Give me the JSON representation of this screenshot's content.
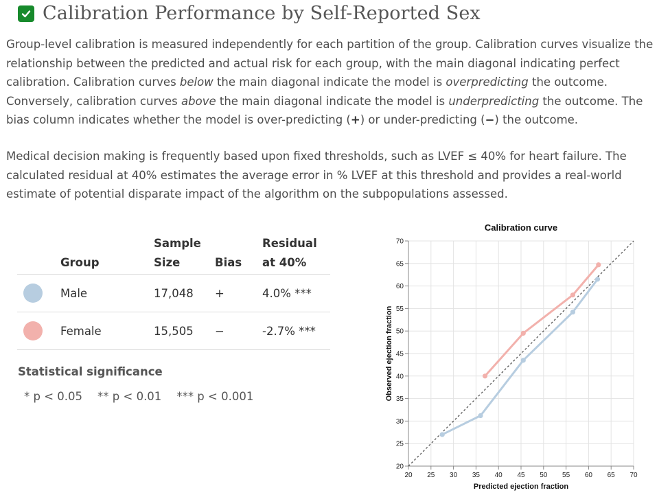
{
  "header": {
    "title": "Calibration Performance by Self-Reported Sex",
    "check_color": "#178a2c",
    "check_icon": "checkmark-icon"
  },
  "para1": {
    "t1": "Group-level calibration is measured independently for each partition of the group. Calibration curves visualize the relationship between the predicted and actual risk for each group, with the main diagonal indicating perfect calibration. Calibration curves ",
    "em1": "below",
    "t2": " the main diagonal indicate the model is ",
    "em2": "overpredicting",
    "t3": " the outcome. Conversely, calibration curves ",
    "em3": "above",
    "t4": " the main diagonal indicate the model is ",
    "em4": "underpredicting",
    "t5": " the outcome. The bias column indicates whether the model is over-predicting (",
    "plus": "+",
    "t6": ") or under-predicting (",
    "minus": "−",
    "t7": ") the outcome."
  },
  "para2": "Medical decision making is frequently based upon fixed thresholds, such as LVEF ≤ 40% for heart failure. The calculated residual at 40% estimates the average error in % LVEF at this threshold and provides a real-world estimate of potential disparate impact of the algorithm on the subpopulations assessed.",
  "table": {
    "headers": {
      "group": "Group",
      "sample_1": "Sample",
      "sample_2": "Size",
      "bias": "Bias",
      "residual_1": "Residual",
      "residual_2": "at 40%"
    },
    "rows": [
      {
        "group": "Male",
        "size": "17,048",
        "bias": "+",
        "residual": "4.0% ***",
        "color": "#b7cde0"
      },
      {
        "group": "Female",
        "size": "15,505",
        "bias": "−",
        "residual": "-2.7% ***",
        "color": "#f2b1ac"
      }
    ]
  },
  "significance": {
    "title": "Statistical significance",
    "items": [
      "* p < 0.05",
      "** p < 0.01",
      "*** p < 0.001"
    ]
  },
  "chart_data": {
    "type": "line",
    "title": "Calibration curve",
    "xlabel": "Predicted ejection fraction",
    "ylabel": "Observed ejection fraction",
    "xlim": [
      20,
      70
    ],
    "ylim": [
      20,
      70
    ],
    "xticks": [
      20,
      25,
      30,
      35,
      40,
      45,
      50,
      55,
      60,
      65,
      70
    ],
    "yticks": [
      20,
      25,
      30,
      35,
      40,
      45,
      50,
      55,
      60,
      65,
      70
    ],
    "grid": true,
    "diagonal": true,
    "series": [
      {
        "name": "Male",
        "color": "#b7cde0",
        "points": [
          [
            27.5,
            27.0
          ],
          [
            36.0,
            31.2
          ],
          [
            45.5,
            43.5
          ],
          [
            56.5,
            54.2
          ],
          [
            62.0,
            61.5
          ]
        ]
      },
      {
        "name": "Female",
        "color": "#f2b1ac",
        "points": [
          [
            37.0,
            40.0
          ],
          [
            45.5,
            49.5
          ],
          [
            56.5,
            58.0
          ],
          [
            62.2,
            64.7
          ]
        ]
      }
    ]
  }
}
